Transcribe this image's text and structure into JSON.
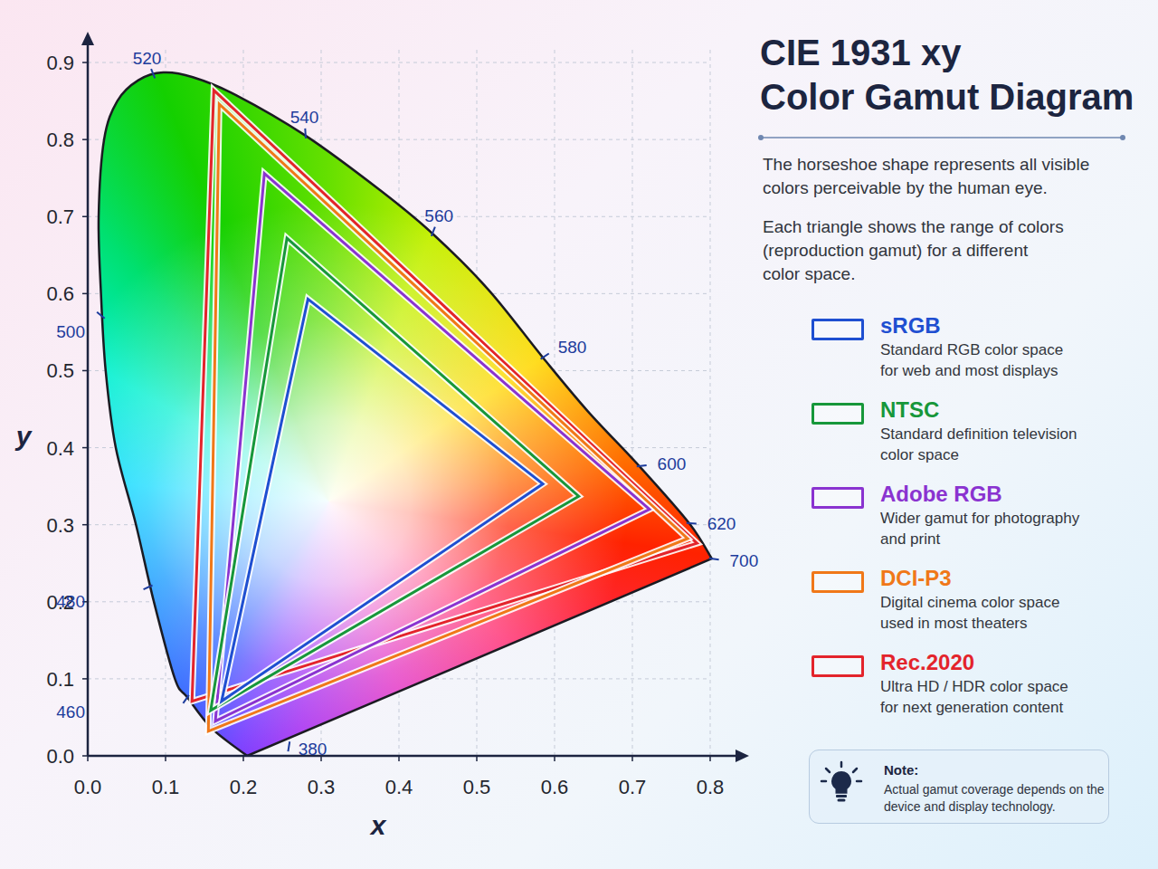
{
  "chart_data": {
    "type": "gamut",
    "title": "CIE 1931 xy\nColor Gamut Diagram",
    "description": [
      "The horseshoe shape represents all visible\ncolors perceivable by the human eye.",
      "Each triangle shows the range of colors\n(reproduction gamut) for a different\ncolor space."
    ],
    "xlabel": "x",
    "ylabel": "y",
    "xlim": [
      0,
      0.85
    ],
    "ylim": [
      0,
      0.94
    ],
    "xticks": [
      {
        "value": 0,
        "label": "0.0"
      },
      0.1,
      0.2,
      0.3,
      0.4,
      0.5,
      0.6,
      0.7,
      0.8
    ],
    "yticks": [
      {
        "value": 0,
        "label": "0.0"
      },
      0.1,
      0.2,
      0.3,
      0.4,
      0.5,
      0.6,
      0.7,
      0.8,
      0.9
    ],
    "grid": true,
    "legend": "right",
    "locus": {
      "x": [
        0.205,
        0.16,
        0.128,
        0.112,
        0.085,
        0.062,
        0.036,
        0.023,
        0.017,
        0.014,
        0.021,
        0.038,
        0.065,
        0.097,
        0.135,
        0.19,
        0.28,
        0.376,
        0.443,
        0.515,
        0.585,
        0.643,
        0.709,
        0.773,
        0.802
      ],
      "y": [
        0.0,
        0.035,
        0.076,
        0.1,
        0.2,
        0.3,
        0.4,
        0.5,
        0.6,
        0.7,
        0.8,
        0.85,
        0.877,
        0.887,
        0.881,
        0.858,
        0.805,
        0.734,
        0.678,
        0.605,
        0.517,
        0.447,
        0.376,
        0.302,
        0.256
      ]
    },
    "wavelengths": {
      "nm": [
        380,
        460,
        480,
        500,
        520,
        540,
        560,
        580,
        600,
        620,
        700
      ],
      "x": [
        0.259,
        0.128,
        0.08,
        0.019,
        0.085,
        0.28,
        0.443,
        0.585,
        0.709,
        0.773,
        0.802
      ],
      "y": [
        0.015,
        0.076,
        0.22,
        0.57,
        0.883,
        0.805,
        0.678,
        0.517,
        0.376,
        0.302,
        0.256
      ]
    },
    "series": [
      {
        "name": "sRGB",
        "description": "Standard RGB color space\nfor web and most displays",
        "color": "#1f4fd1",
        "x": [
          0.283,
          0.585,
          0.172
        ],
        "y": [
          0.593,
          0.353,
          0.071
        ]
      },
      {
        "name": "NTSC",
        "description": "Standard definition television\ncolor space",
        "color": "#17973a",
        "x": [
          0.256,
          0.631,
          0.158
        ],
        "y": [
          0.672,
          0.337,
          0.059
        ]
      },
      {
        "name": "Adobe RGB",
        "description": "Wider gamut for photography\nand print",
        "color": "#8a33d0",
        "x": [
          0.227,
          0.722,
          0.164
        ],
        "y": [
          0.756,
          0.32,
          0.045
        ]
      },
      {
        "name": "DCI-P3",
        "description": "Digital cinema color space\nused in most theaters",
        "color": "#f07818",
        "x": [
          0.169,
          0.771,
          0.155
        ],
        "y": [
          0.846,
          0.282,
          0.032
        ]
      },
      {
        "name": "Rec.2020",
        "description": "Ultra HD / HDR color space\nfor next generation content",
        "color": "#e3242b",
        "x": [
          0.162,
          0.783,
          0.134
        ],
        "y": [
          0.864,
          0.276,
          0.071
        ]
      }
    ],
    "note": {
      "title": "Note:",
      "text": "Actual gamut coverage depends on the\ndevice and display technology."
    }
  }
}
